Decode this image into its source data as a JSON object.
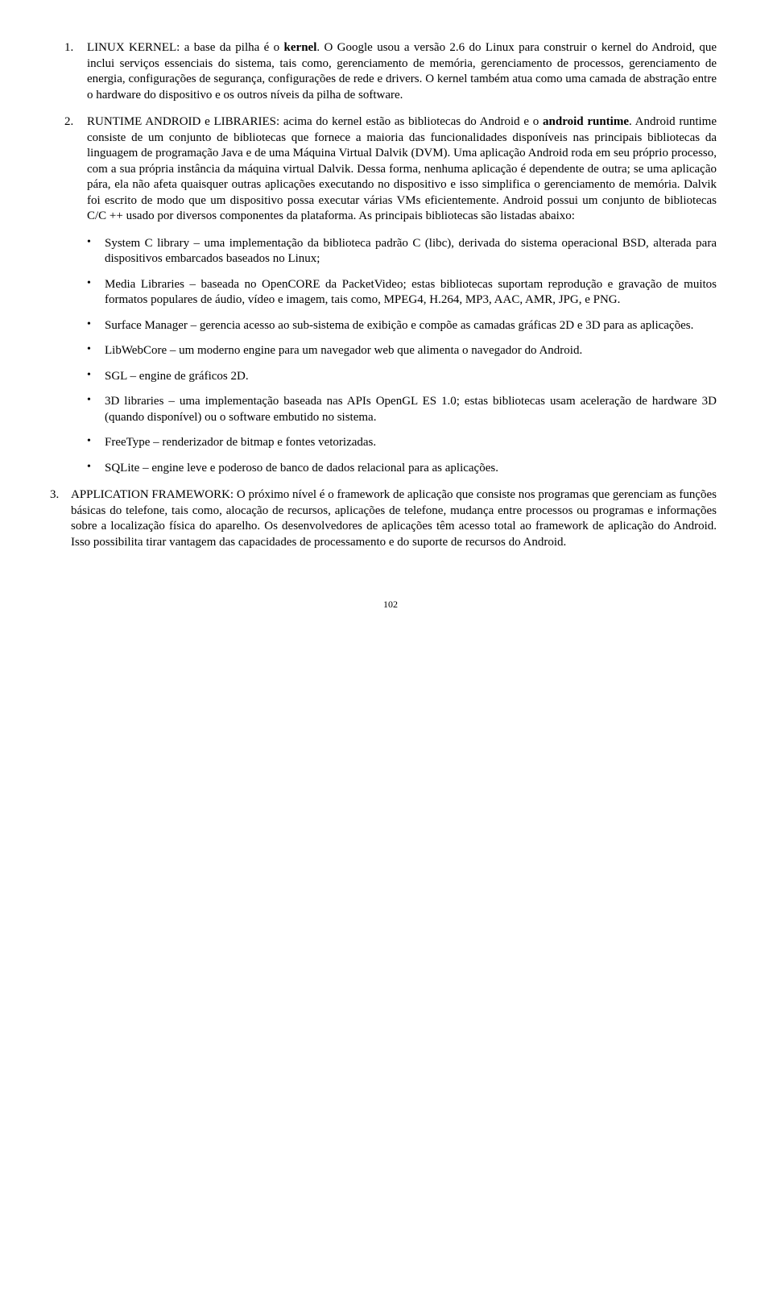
{
  "items": [
    {
      "num": "1.",
      "html": "LINUX KERNEL: a base da pilha é o <strong>kernel</strong>. O Google usou a versão 2.6 do Linux para construir o kernel do Android, que inclui serviços essenciais do sistema, tais como, gerenciamento de memória, gerenciamento de processos, gerenciamento de energia, configurações de segurança, configurações de rede e drivers.  O kernel também atua como uma camada de abstração entre o hardware do dispositivo e os outros níveis da pilha de software."
    },
    {
      "num": "2.",
      "html": "RUNTIME ANDROID e LIBRARIES: acima do kernel estão as bibliotecas do Android e o <strong>android runtime</strong>.  Android runtime consiste de um conjunto de bibliotecas que fornece a maioria das funcionalidades disponíveis nas principais bibliotecas da linguagem de programação Java e de uma Máquina Virtual Dalvik (DVM). Uma aplicação Android roda em seu próprio processo, com a sua própria instância da máquina virtual Dalvik. Dessa forma, nenhuma aplicação é dependente de outra; se uma aplicação pára, ela não afeta quaisquer outras aplicações executando no dispositivo e isso simplifica o gerenciamento de memória.  Dalvik foi escrito de modo que um dispositivo possa executar várias VMs eficientemente. Android possui um conjunto de bibliotecas C/C ++ usado por diversos componentes da plataforma. As principais bibliotecas são listadas abaixo:"
    }
  ],
  "bullets": [
    "System C library – uma implementação da biblioteca padrão C (libc), derivada do sistema operacional BSD, alterada para dispositivos embarcados baseados no Linux;",
    "Media Libraries – baseada no OpenCORE da PacketVideo; estas bibliotecas suportam reprodução e gravação de muitos formatos populares de áudio, vídeo e imagem, tais como, MPEG4, H.264, MP3, AAC, AMR, JPG, e PNG.",
    "Surface Manager – gerencia acesso ao sub-sistema de exibição e compõe as camadas gráficas 2D e 3D para as aplicações.",
    "LibWebCore – um moderno engine para um navegador web que alimenta o navegador do Android.",
    "SGL – engine de gráficos 2D.",
    "3D libraries – uma implementação baseada nas APIs OpenGL ES 1.0; estas bibliotecas usam aceleração de hardware 3D (quando disponível) ou o software embutido no sistema.",
    "FreeType – renderizador de bitmap e fontes vetorizadas.",
    "SQLite – engine leve e poderoso de banco de dados relacional para as aplicações."
  ],
  "item3": {
    "num": "3.",
    "html": "APPLICATION FRAMEWORK: O próximo nível é o framework de aplicação que consiste nos programas que gerenciam as funções básicas do telefone, tais como, alocação de recursos, aplicações de telefone, mudança entre processos ou programas e informações sobre a localização física do aparelho. Os desenvolvedores de aplicações têm acesso total ao framework de aplicação do Android. Isso possibilita tirar vantagem das capacidades de processamento e do suporte de recursos do Android."
  },
  "pagenum": "102"
}
